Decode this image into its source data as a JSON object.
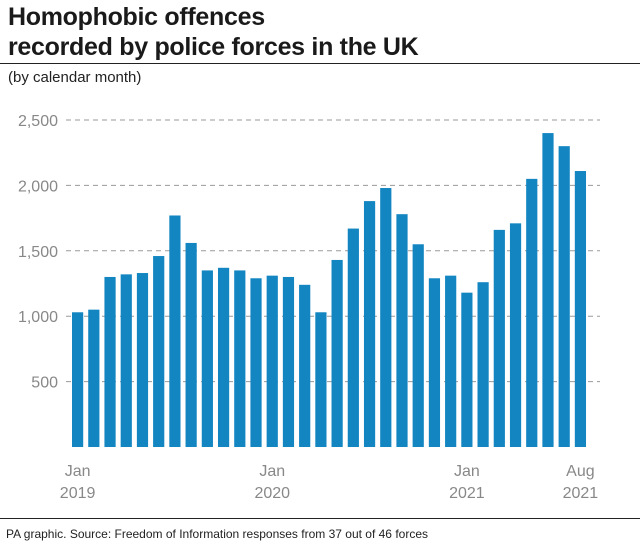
{
  "chart_data": {
    "type": "bar",
    "title_lines": [
      "Homophobic offences",
      "recorded by police forces in the UK"
    ],
    "subtitle": "(by calendar month)",
    "source": "PA graphic. Source: Freedom of Information responses from 37 out of 46 forces",
    "bar_color": "#1386c2",
    "grid_color": "#9a9a9a",
    "ylim": [
      0,
      2500
    ],
    "yticks": [
      {
        "value": 500,
        "label": "500"
      },
      {
        "value": 1000,
        "label": "1,000"
      },
      {
        "value": 1500,
        "label": "1,500"
      },
      {
        "value": 2000,
        "label": "2,000"
      },
      {
        "value": 2500,
        "label": "2,500"
      }
    ],
    "x_labels": [
      {
        "index": 0,
        "line1": "Jan",
        "line2": "2019"
      },
      {
        "index": 12,
        "line1": "Jan",
        "line2": "2020"
      },
      {
        "index": 24,
        "line1": "Jan",
        "line2": "2021"
      },
      {
        "index": 31,
        "line1": "Aug",
        "line2": "2021"
      }
    ],
    "values": [
      1030,
      1050,
      1300,
      1320,
      1330,
      1460,
      1770,
      1560,
      1350,
      1370,
      1350,
      1290,
      1310,
      1300,
      1240,
      1030,
      1430,
      1670,
      1880,
      1980,
      1780,
      1550,
      1290,
      1310,
      1180,
      1260,
      1660,
      1710,
      2050,
      2400,
      2300,
      2110
    ]
  }
}
